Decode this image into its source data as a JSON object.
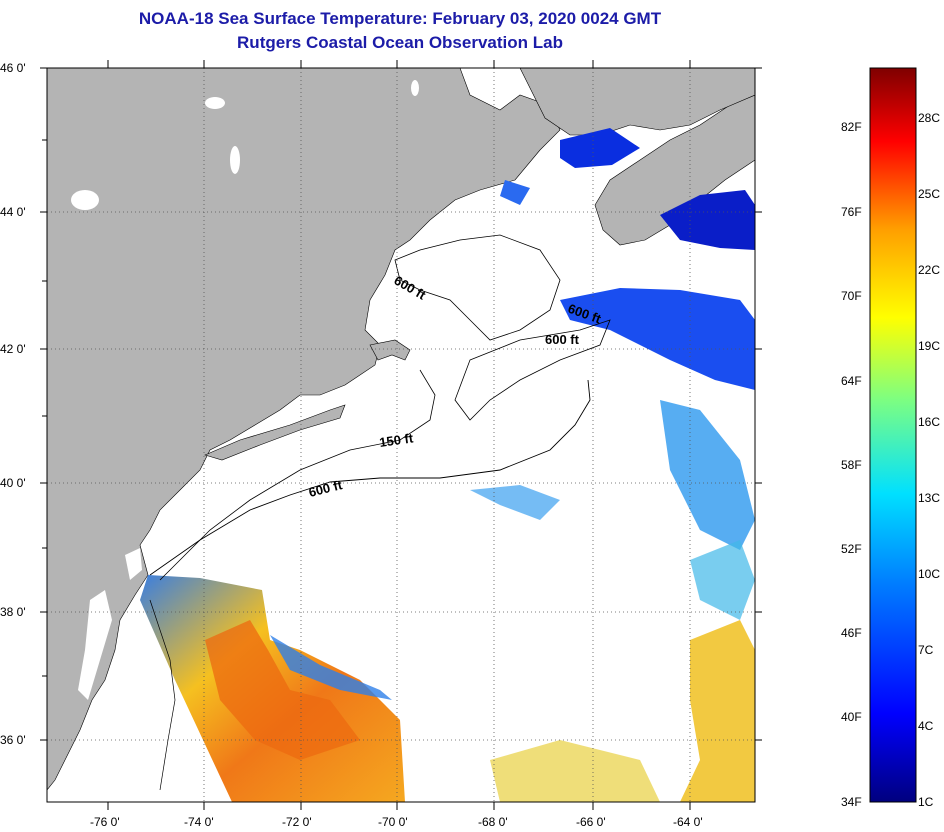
{
  "header": {
    "title": "NOAA-18 Sea Surface Temperature:  February 03, 2020 0024 GMT",
    "subtitle": "Rutgers Coastal Ocean Observation Lab"
  },
  "map": {
    "lat_range": [
      35,
      46
    ],
    "lon_range": [
      -77,
      -63
    ],
    "lat_ticks": [
      "46 0'",
      "44 0'",
      "42 0'",
      "40 0'",
      "38 0'",
      "36 0'"
    ],
    "lon_ticks": [
      "-76 0'",
      "-74 0'",
      "-72 0'",
      "-70 0'",
      "-68 0'",
      "-66 0'",
      "-64 0'"
    ],
    "depth_labels": [
      "600 ft",
      "600 ft",
      "600 ft",
      "150 ft",
      "600 ft"
    ],
    "colors": {
      "land": "#b4b4b4",
      "ocean": "#ffffff",
      "grid": "#555555"
    }
  },
  "colorbar": {
    "fahrenheit": [
      "82F",
      "76F",
      "70F",
      "64F",
      "58F",
      "52F",
      "46F",
      "40F",
      "34F"
    ],
    "celsius": [
      "28C",
      "25C",
      "22C",
      "19C",
      "16C",
      "13C",
      "10C",
      "7C",
      "4C",
      "1C"
    ],
    "stops": [
      "#00007f",
      "#0000ff",
      "#007fff",
      "#00ffff",
      "#7fff7f",
      "#ffff00",
      "#ff7f00",
      "#ff0000",
      "#7f0000"
    ]
  }
}
